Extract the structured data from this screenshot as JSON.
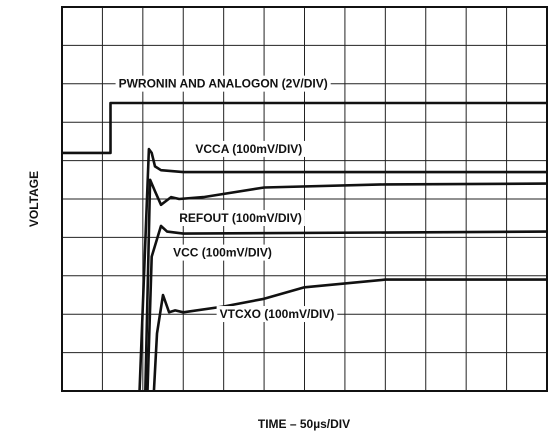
{
  "chart_data": {
    "type": "line",
    "title": "",
    "xlabel": "TIME – 50µs/DIV",
    "ylabel": "VOLTAGE",
    "x_divisions": 12,
    "y_divisions": 10,
    "xlim": [
      0,
      12
    ],
    "ylim": [
      0,
      10
    ],
    "grid": true,
    "legend": "none",
    "series": [
      {
        "name": "PWRONIN AND ANALOGON (2V/DIV)",
        "color": "#111111",
        "x": [
          0.0,
          1.2,
          1.2,
          12.0
        ],
        "y": [
          6.2,
          6.2,
          7.5,
          7.5
        ],
        "label_text": "PWRONIN AND ANALOGON (2V/DIV)",
        "label_at": [
          1.4,
          7.9
        ]
      },
      {
        "name": "VCCA (100mV/DIV)",
        "color": "#111111",
        "x": [
          1.9,
          2.15,
          2.22,
          2.3,
          2.45,
          3.0,
          12.0
        ],
        "y": [
          -0.5,
          6.3,
          6.2,
          5.85,
          5.75,
          5.7,
          5.7
        ],
        "label_text": "VCCA (100mV/DIV)",
        "label_at": [
          3.3,
          6.2
        ]
      },
      {
        "name": "REFOUT (100mV/DIV)",
        "color": "#111111",
        "x": [
          2.05,
          2.18,
          2.3,
          2.45,
          2.7,
          2.9,
          3.5,
          5.0,
          8.0,
          12.0
        ],
        "y": [
          -0.5,
          5.5,
          5.2,
          4.85,
          5.05,
          5.0,
          5.05,
          5.3,
          5.38,
          5.4
        ],
        "label_text": "REFOUT (100mV/DIV)",
        "label_at": [
          2.9,
          4.4
        ]
      },
      {
        "name": "VCC (100mV/DIV)",
        "color": "#111111",
        "x": [
          2.1,
          2.22,
          2.45,
          2.6,
          3.0,
          12.0
        ],
        "y": [
          -0.5,
          3.5,
          4.3,
          4.15,
          4.1,
          4.15
        ],
        "label_text": "VCC (100mV/DIV)",
        "label_at": [
          2.75,
          3.5
        ]
      },
      {
        "name": "VTCXO (100mV/DIV)",
        "color": "#111111",
        "x": [
          2.25,
          2.35,
          2.5,
          2.65,
          2.8,
          3.0,
          4.0,
          5.0,
          6.0,
          8.0,
          12.0
        ],
        "y": [
          -0.5,
          1.5,
          2.5,
          2.05,
          2.1,
          2.05,
          2.2,
          2.4,
          2.7,
          2.9,
          2.9
        ],
        "label_text": "VTCXO (100mV/DIV)",
        "label_at": [
          3.9,
          1.9
        ]
      }
    ]
  }
}
